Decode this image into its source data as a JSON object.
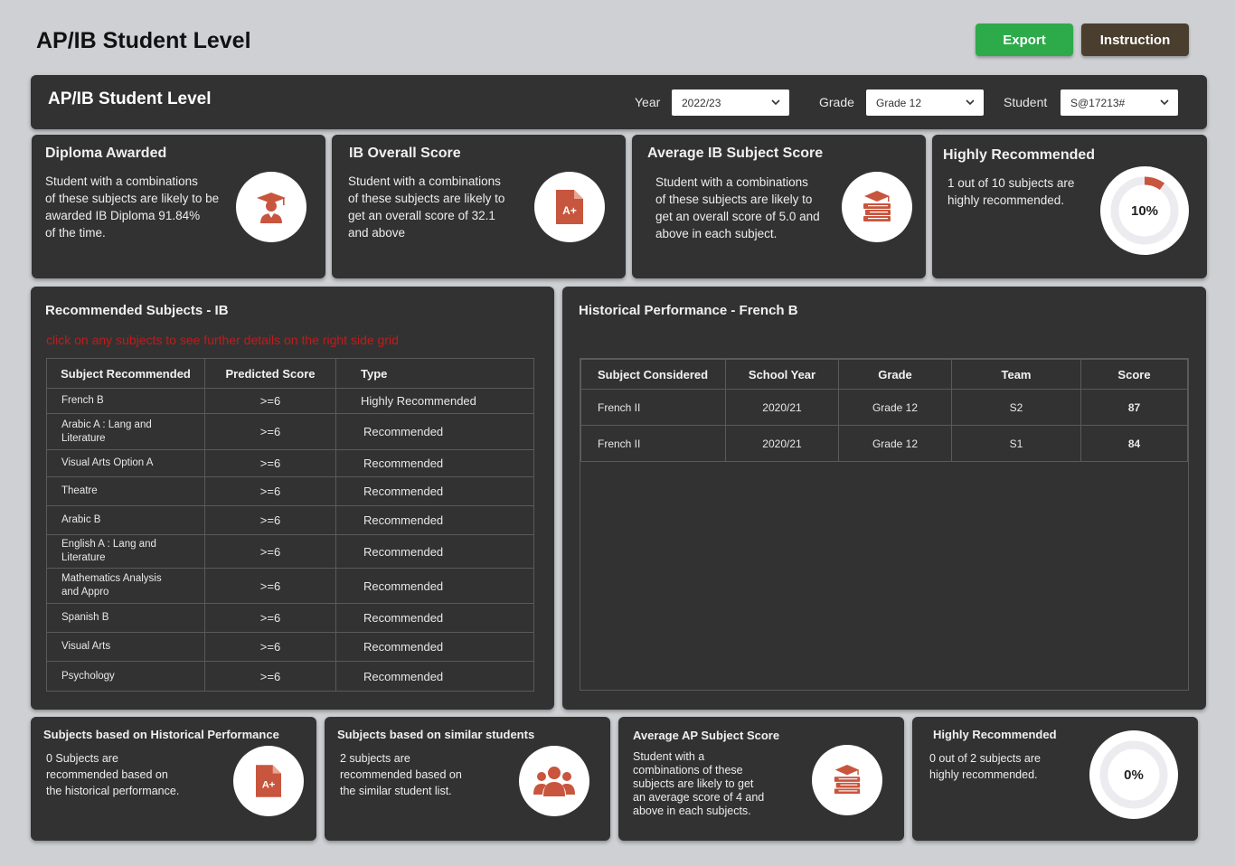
{
  "header": {
    "title": "AP/IB Student Level",
    "export_label": "Export",
    "instruction_label": "Instruction"
  },
  "filters": {
    "title": "AP/IB Student Level",
    "year_label": "Year",
    "year_value": "2022/23",
    "grade_label": "Grade",
    "grade_value": "Grade 12",
    "student_label": "Student",
    "student_value": "S@17213#"
  },
  "cards": [
    {
      "title": "Diploma Awarded",
      "text": [
        "Student with a combinations",
        "of these subjects are likely to be",
        "awarded IB Diploma 91.84%",
        "of the time."
      ],
      "icon": "graduate-icon"
    },
    {
      "title": "IB Overall Score",
      "text": [
        "Student with a combinations",
        "of these subjects are likely to",
        "get an overall score of 32.1",
        "and above"
      ],
      "icon": "grade-document-icon"
    },
    {
      "title": "Average IB Subject Score",
      "text": [
        "Student with a combinations",
        "of these subjects are likely to",
        "get an overall score of 5.0 and",
        "above in each subject."
      ],
      "icon": "books-icon"
    },
    {
      "title": "Highly Recommended",
      "text": [
        "1 out of 10 subjects are",
        "highly recommended."
      ],
      "donut_label": "10%",
      "donut_value": 0.1
    }
  ],
  "recommended": {
    "title": "Recommended Subjects - IB",
    "hint": "click on any subjects to see further details on the right side grid",
    "columns": [
      "Subject Recommended",
      "Predicted Score",
      "Type"
    ],
    "rows": [
      {
        "subject": "French B",
        "score": ">=6",
        "type": "Highly Recommended"
      },
      {
        "subject": "Arabic A : Lang and Literature",
        "score": ">=6",
        "type": "Recommended"
      },
      {
        "subject": "Visual Arts Option A",
        "score": ">=6",
        "type": "Recommended"
      },
      {
        "subject": "Theatre",
        "score": ">=6",
        "type": "Recommended"
      },
      {
        "subject": "Arabic B",
        "score": ">=6",
        "type": "Recommended"
      },
      {
        "subject": "English A : Lang and Literature",
        "score": ">=6",
        "type": "Recommended"
      },
      {
        "subject": "Mathematics Analysis and Appro",
        "score": ">=6",
        "type": "Recommended"
      },
      {
        "subject": "Spanish B",
        "score": ">=6",
        "type": "Recommended"
      },
      {
        "subject": "Visual Arts",
        "score": ">=6",
        "type": "Recommended"
      },
      {
        "subject": "Psychology",
        "score": ">=6",
        "type": "Recommended"
      }
    ]
  },
  "historical": {
    "title": "Historical Performance - French B",
    "columns": [
      "Subject Considered",
      "School Year",
      "Grade",
      "Team",
      "Score"
    ],
    "rows": [
      {
        "subject": "French II",
        "year": "2020/21",
        "grade": "Grade 12",
        "team": "S2",
        "score": "87"
      },
      {
        "subject": "French II",
        "year": "2020/21",
        "grade": "Grade 12",
        "team": "S1",
        "score": "84"
      }
    ]
  },
  "bottom_cards": [
    {
      "title": "Subjects based on Historical Performance",
      "text": [
        "0 Subjects are",
        "recommended based on",
        "the historical performance."
      ],
      "icon": "grade-document-icon"
    },
    {
      "title": "Subjects based on similar students",
      "text": [
        "2 subjects are",
        "recommended based on",
        "the similar student list."
      ],
      "icon": "users-icon"
    },
    {
      "title": "Average AP Subject Score",
      "text": [
        "Student with a",
        "combinations of these",
        "subjects are likely to get",
        "an average score of 4 and",
        "above in each subjects."
      ],
      "icon": "books-icon"
    },
    {
      "title": "Highly Recommended",
      "text": [
        "0 out of 2 subjects are",
        "highly recommended."
      ],
      "donut_label": "0%",
      "donut_value": 0
    }
  ],
  "colors": {
    "accent": "#c8553d",
    "export": "#2daa4a",
    "instruction": "#4a3f2e",
    "panel": "#323232",
    "hint": "#c01c1c"
  }
}
